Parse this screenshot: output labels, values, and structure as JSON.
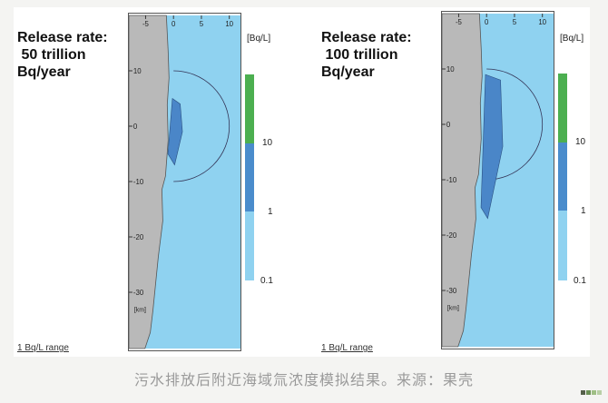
{
  "panels": [
    {
      "title": "Release rate:\n 50 trillion\nBq/year",
      "range_label": "1 Bq/L range",
      "unit": "[Bq/L]",
      "plume_km": [
        5,
        -7
      ]
    },
    {
      "title": "Release rate:\n 100 trillion\nBq/year",
      "range_label": "1 Bq/L range",
      "unit": "[Bq/L]",
      "plume_km": [
        9,
        -17
      ]
    }
  ],
  "map": {
    "x_ticks": [
      "-5",
      "0",
      "5",
      "10"
    ],
    "y_ticks": [
      "10",
      "0",
      "-10",
      "-20",
      "-30"
    ],
    "y_unit": "[km]"
  },
  "colorbar": {
    "labels": [
      "10",
      "1",
      "0.1"
    ],
    "colors": {
      "high": "#4caf50",
      "mid": "#4a8ccc",
      "low": "#8fd2f0"
    }
  },
  "colors": {
    "land": "#b9b9b9",
    "sea": "#8fd2f0",
    "plume": "#4a86c8"
  },
  "caption": "污水排放后附近海域氚浓度模拟结果。来源：果壳"
}
